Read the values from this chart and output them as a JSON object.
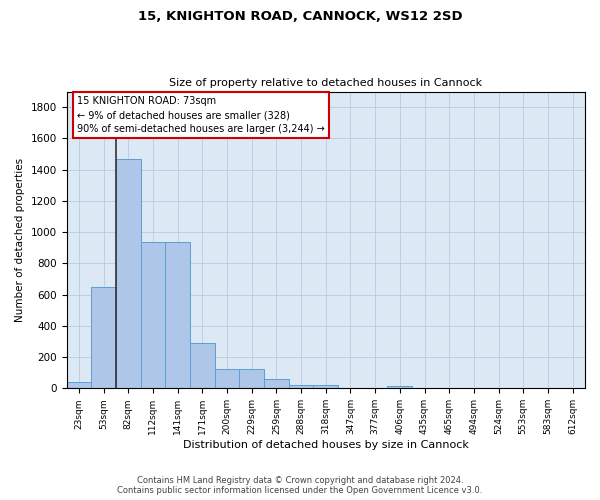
{
  "title": "15, KNIGHTON ROAD, CANNOCK, WS12 2SD",
  "subtitle": "Size of property relative to detached houses in Cannock",
  "xlabel": "Distribution of detached houses by size in Cannock",
  "ylabel": "Number of detached properties",
  "bar_labels": [
    "23sqm",
    "53sqm",
    "82sqm",
    "112sqm",
    "141sqm",
    "171sqm",
    "200sqm",
    "229sqm",
    "259sqm",
    "288sqm",
    "318sqm",
    "347sqm",
    "377sqm",
    "406sqm",
    "435sqm",
    "465sqm",
    "494sqm",
    "524sqm",
    "553sqm",
    "583sqm",
    "612sqm"
  ],
  "bar_values": [
    38,
    650,
    1470,
    935,
    935,
    290,
    125,
    125,
    60,
    22,
    22,
    0,
    0,
    14,
    0,
    0,
    0,
    0,
    0,
    0,
    0
  ],
  "bar_color": "#aec6e8",
  "bar_edge_color": "#5a9fd4",
  "ylim": [
    0,
    1900
  ],
  "yticks": [
    0,
    200,
    400,
    600,
    800,
    1000,
    1200,
    1400,
    1600,
    1800
  ],
  "annotation_lines": [
    "15 KNIGHTON ROAD: 73sqm",
    "← 9% of detached houses are smaller (328)",
    "90% of semi-detached houses are larger (3,244) →"
  ],
  "vline_color": "#333333",
  "box_edge_color": "#cc0000",
  "background_color": "#ffffff",
  "axes_bg_color": "#dce9f5",
  "grid_color": "#b0c4de",
  "footer_line1": "Contains HM Land Registry data © Crown copyright and database right 2024.",
  "footer_line2": "Contains public sector information licensed under the Open Government Licence v3.0."
}
